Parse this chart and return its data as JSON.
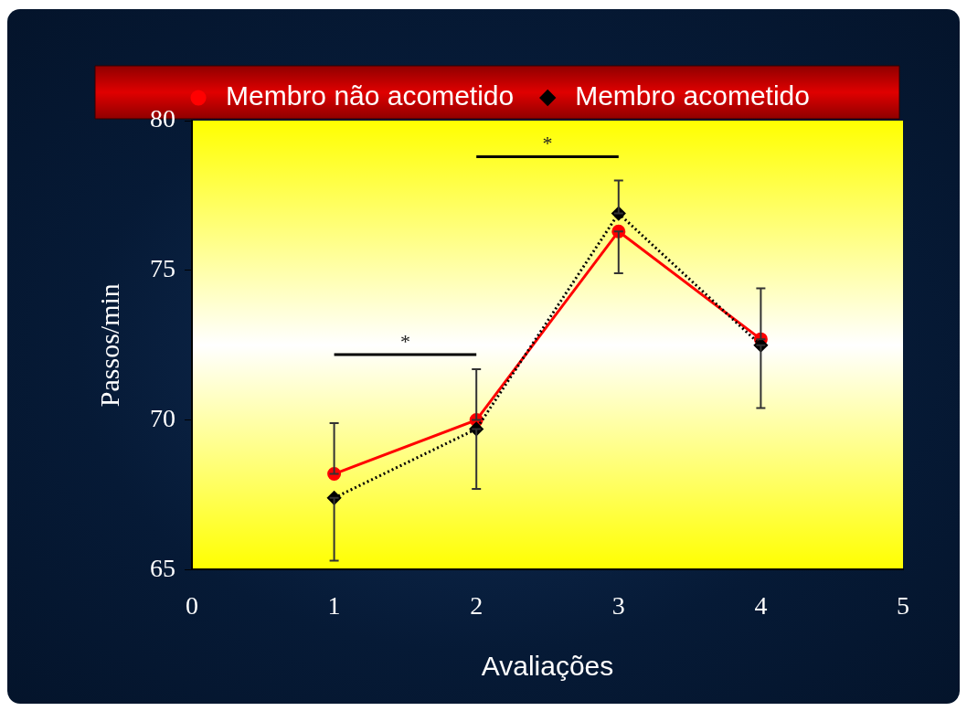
{
  "chart_data": {
    "type": "line",
    "xlabel": "Avaliações",
    "ylabel": "Passos/min",
    "xlim": [
      0,
      5
    ],
    "xticks": [
      0,
      1,
      2,
      3,
      4,
      5
    ],
    "ylim": [
      65,
      80
    ],
    "yticks": [
      65,
      70,
      75,
      80
    ],
    "grid": false,
    "legend": "top",
    "x": [
      1,
      2,
      3,
      4
    ],
    "series": [
      {
        "name": "Membro não acometido",
        "color": "#ff0000",
        "marker": "circle",
        "line_style": "solid",
        "values": [
          68.2,
          70.0,
          76.3,
          72.7
        ],
        "errors": [
          [
            68.2,
            69.9
          ],
          [
            70.0,
            71.7
          ],
          [
            74.9,
            76.3
          ],
          [
            72.7,
            74.4
          ]
        ]
      },
      {
        "name": "Membro acometido",
        "color": "#000000",
        "marker": "diamond",
        "line_style": "dotted",
        "values": [
          67.4,
          69.7,
          76.9,
          72.5
        ],
        "errors": [
          [
            65.3,
            67.4
          ],
          [
            67.7,
            69.7
          ],
          [
            76.9,
            78.0
          ],
          [
            70.4,
            72.5
          ]
        ]
      }
    ],
    "annotations": [
      "*",
      "*"
    ]
  }
}
